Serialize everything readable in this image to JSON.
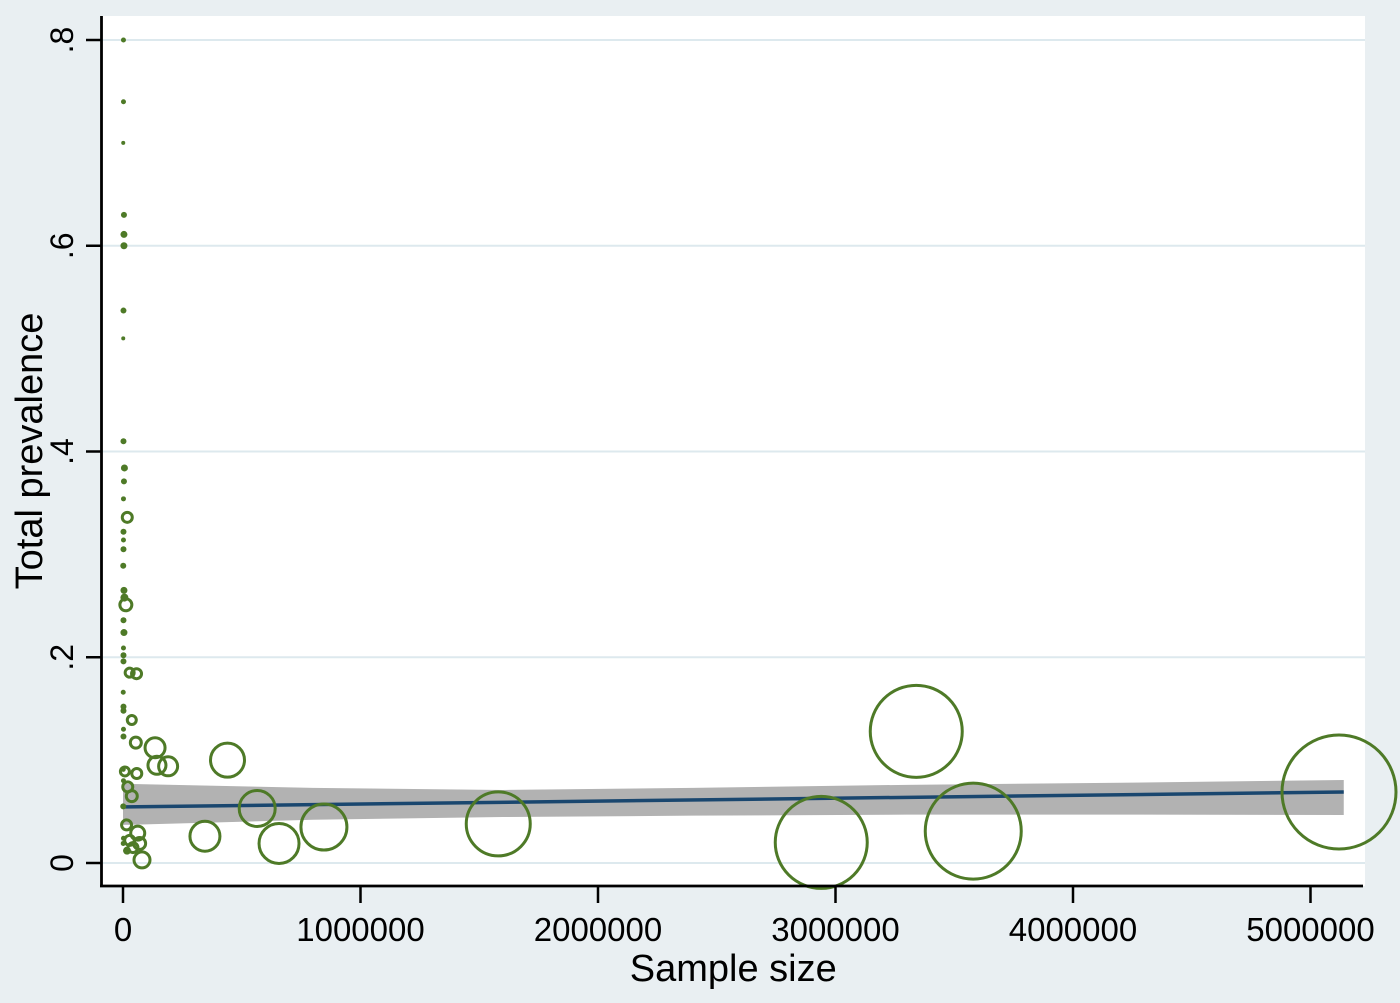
{
  "figure": {
    "background_color": "#e9eff2",
    "plot_background": "#ffffff",
    "grid_color": "#dde9ee",
    "axis_color": "#000000",
    "bubble_color": "#4e7a27",
    "fit_line_color": "#1a476f",
    "ci_band_color": "#b2b2b2"
  },
  "chart_data": {
    "type": "scatter",
    "subtype": "bubble-meta-regression",
    "title": "",
    "xlabel": "Sample size",
    "ylabel": "Total prevalence",
    "xlim": [
      -95000,
      5400000
    ],
    "ylim": [
      -0.022,
      0.823
    ],
    "grid": true,
    "legend_position": "none",
    "x_ticks": [
      0,
      1000000,
      2000000,
      3000000,
      4000000,
      5000000
    ],
    "x_tick_labels": [
      "0",
      "1000000",
      "2000000",
      "3000000",
      "4000000",
      "5000000"
    ],
    "y_ticks": [
      0,
      0.2,
      0.4,
      0.6,
      0.8
    ],
    "y_tick_labels": [
      "0",
      ".2",
      ".4",
      ".6",
      ".8"
    ],
    "series": [
      {
        "name": "study-bubbles",
        "type": "bubble",
        "note": "points are [sample_size, prevalence, bubble_radius_px]",
        "points": [
          [
            2000,
            0.8,
            2.5
          ],
          [
            2000,
            0.74,
            2.5
          ],
          [
            1000,
            0.7,
            2
          ],
          [
            4000,
            0.63,
            3
          ],
          [
            4000,
            0.611,
            3.5
          ],
          [
            4000,
            0.6,
            3.5
          ],
          [
            2000,
            0.537,
            3
          ],
          [
            1000,
            0.51,
            2
          ],
          [
            2000,
            0.41,
            3
          ],
          [
            6000,
            0.384,
            3.5
          ],
          [
            4000,
            0.371,
            3
          ],
          [
            2000,
            0.354,
            2.5
          ],
          [
            18000,
            0.336,
            5
          ],
          [
            2000,
            0.322,
            3
          ],
          [
            2000,
            0.314,
            2.5
          ],
          [
            2000,
            0.305,
            3
          ],
          [
            1000,
            0.289,
            3
          ],
          [
            4000,
            0.265,
            3.5
          ],
          [
            6000,
            0.258,
            4
          ],
          [
            12000,
            0.251,
            6
          ],
          [
            2000,
            0.236,
            3
          ],
          [
            4000,
            0.224,
            3.5
          ],
          [
            2000,
            0.209,
            2.5
          ],
          [
            2000,
            0.202,
            3
          ],
          [
            2000,
            0.196,
            3
          ],
          [
            28000,
            0.185,
            4.5
          ],
          [
            57000,
            0.184,
            5
          ],
          [
            1000,
            0.166,
            2.5
          ],
          [
            2000,
            0.152,
            3
          ],
          [
            2000,
            0.148,
            3
          ],
          [
            37000,
            0.139,
            4.5
          ],
          [
            2000,
            0.13,
            2.5
          ],
          [
            2000,
            0.123,
            3
          ],
          [
            54000,
            0.117,
            5.5
          ],
          [
            135000,
            0.112,
            10
          ],
          [
            440000,
            0.1,
            17
          ],
          [
            143000,
            0.095,
            9
          ],
          [
            190000,
            0.094,
            9.5
          ],
          [
            1000,
            0.091,
            2.5
          ],
          [
            8000,
            0.089,
            4.5
          ],
          [
            58000,
            0.087,
            5
          ],
          [
            2000,
            0.08,
            2.5
          ],
          [
            20000,
            0.074,
            5
          ],
          [
            37000,
            0.065,
            5.5
          ],
          [
            1000,
            0.055,
            3
          ],
          [
            15000,
            0.037,
            5
          ],
          [
            62000,
            0.029,
            7
          ],
          [
            345000,
            0.026,
            15
          ],
          [
            2000,
            0.024,
            2.5
          ],
          [
            28000,
            0.022,
            5
          ],
          [
            1000,
            0.019,
            2.5
          ],
          [
            70000,
            0.019,
            6
          ],
          [
            42000,
            0.015,
            5
          ],
          [
            17000,
            0.012,
            4
          ],
          [
            80000,
            0.003,
            8
          ],
          [
            565000,
            0.053,
            18
          ],
          [
            657000,
            0.019,
            20
          ],
          [
            846000,
            0.035,
            23
          ],
          [
            1580000,
            0.038,
            32
          ],
          [
            2940000,
            0.02,
            46
          ],
          [
            3340000,
            0.128,
            46
          ],
          [
            3580000,
            0.031,
            48
          ],
          [
            5120000,
            0.069,
            57
          ]
        ]
      },
      {
        "name": "fitted-line",
        "type": "line",
        "points": [
          [
            0,
            0.0545
          ],
          [
            5140000,
            0.069
          ]
        ]
      },
      {
        "name": "confidence-band",
        "type": "band",
        "note": "points are [sample_size, lower, upper]",
        "points": [
          [
            0,
            0.037,
            0.077
          ],
          [
            800000,
            0.042,
            0.073
          ],
          [
            1600000,
            0.0447,
            0.071
          ],
          [
            2400000,
            0.046,
            0.073
          ],
          [
            3300000,
            0.047,
            0.076
          ],
          [
            4200000,
            0.047,
            0.078
          ],
          [
            5140000,
            0.0467,
            0.0807
          ]
        ]
      }
    ]
  }
}
